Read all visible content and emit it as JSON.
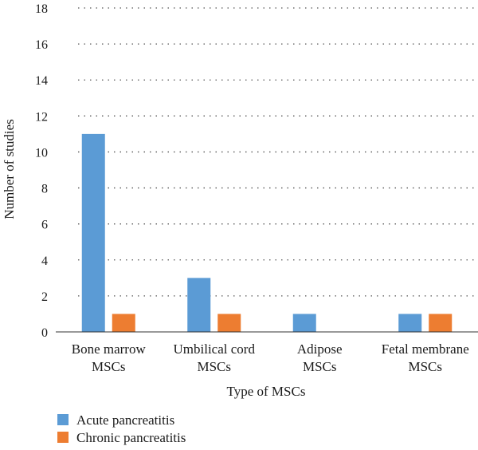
{
  "chart_data": {
    "type": "bar",
    "categories": [
      "Bone marrow MSCs",
      "Umbilical cord MSCs",
      "Adipose MSCs",
      "Fetal membrane MSCs"
    ],
    "category_label_lines": [
      [
        "Bone marrow",
        "MSCs"
      ],
      [
        "Umbilical cord",
        "MSCs"
      ],
      [
        "Adipose",
        "MSCs"
      ],
      [
        "Fetal membrane",
        "MSCs"
      ]
    ],
    "series": [
      {
        "name": "Acute pancreatitis",
        "color": "#5b9bd5",
        "values": [
          11,
          3,
          1,
          1
        ]
      },
      {
        "name": "Chronic pancreatitis",
        "color": "#ed7d31",
        "values": [
          1,
          1,
          0,
          1
        ]
      }
    ],
    "xlabel": "Type of MSCs",
    "ylabel": "Number of studies",
    "ylim": [
      0,
      18
    ],
    "yticks": [
      0,
      2,
      4,
      6,
      8,
      10,
      12,
      14,
      16,
      18
    ],
    "grid": true,
    "legend_position": "bottom-left"
  }
}
